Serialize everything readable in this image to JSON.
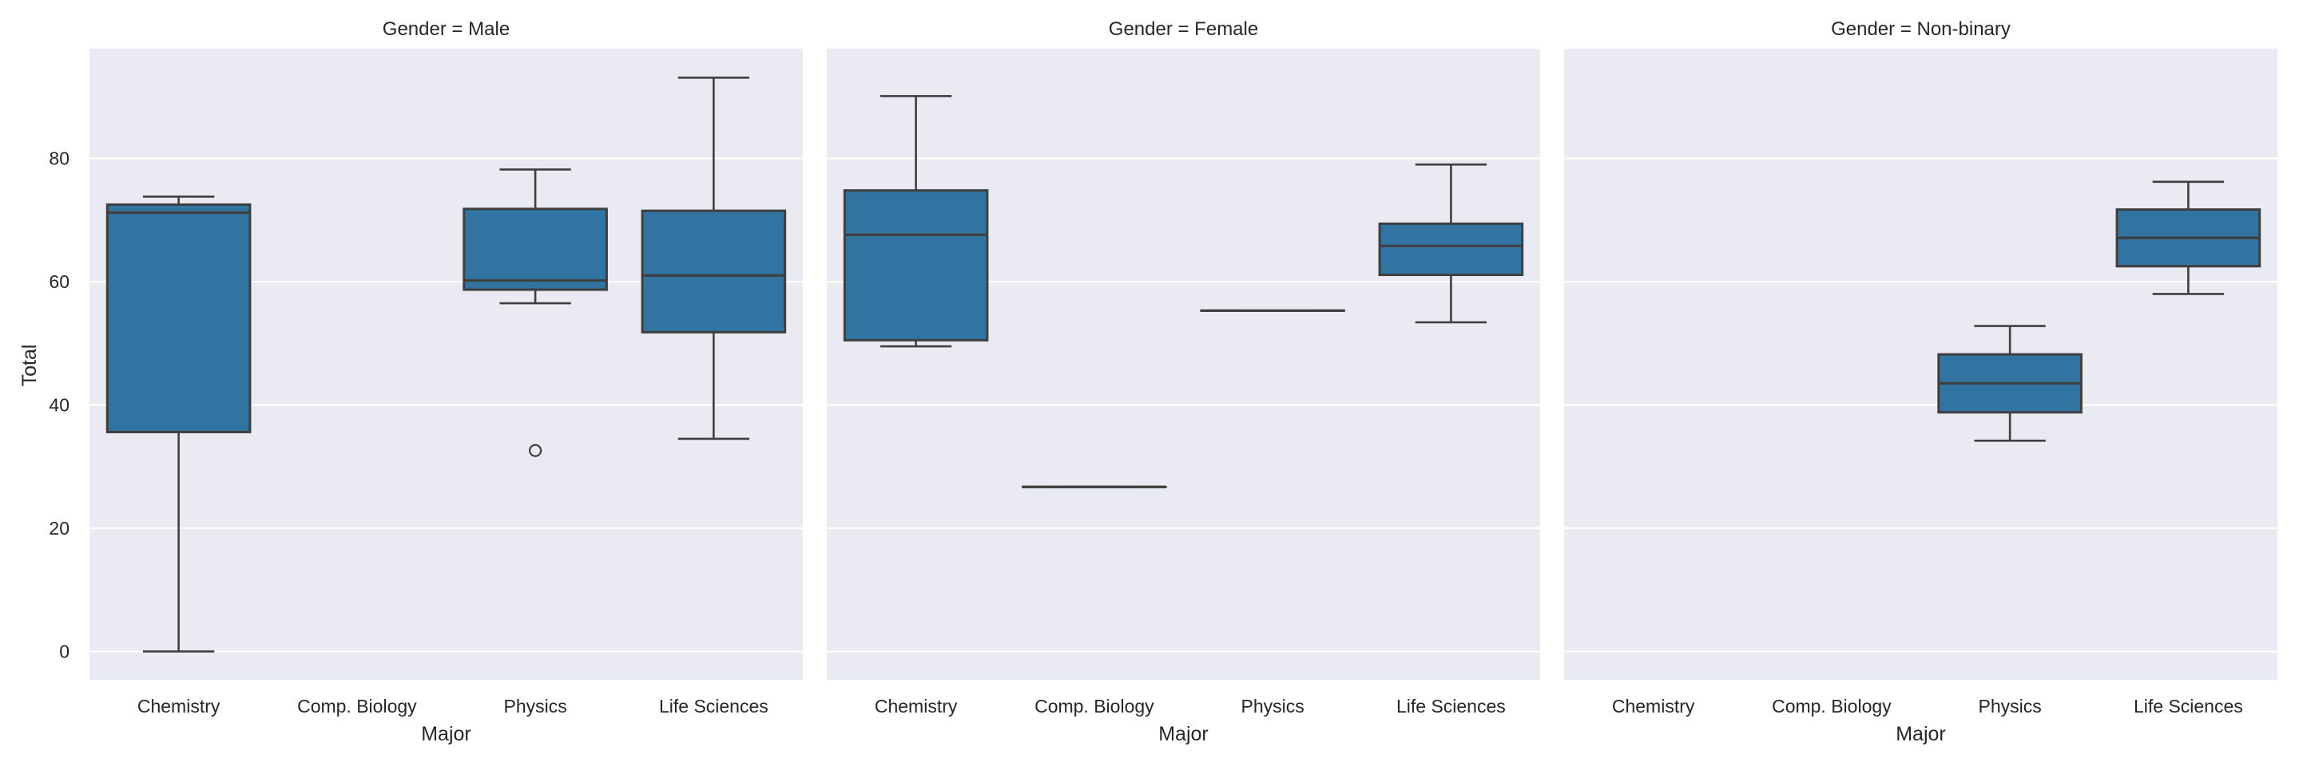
{
  "chart_data": {
    "type": "box",
    "layout": "facet-columns",
    "facet_variable": "Gender",
    "xlabel": "Major",
    "ylabel": "Total",
    "ylim": [
      -4.6,
      97.8
    ],
    "yticks": [
      0,
      20,
      40,
      60,
      80
    ],
    "ytick_labels": [
      "0",
      "20",
      "40",
      "60",
      "80"
    ],
    "grid": true,
    "categories": [
      "Chemistry",
      "Comp. Biology",
      "Physics",
      "Life Sciences"
    ],
    "colors": {
      "box_fill": "#3274a1",
      "box_edge": "#3f3f3f",
      "panel_bg": "#eaeaf2",
      "grid": "#ffffff",
      "text": "#262626"
    },
    "panels": [
      {
        "title": "Gender = Male",
        "boxes": [
          {
            "category": "Chemistry",
            "whisker_low": 0.0,
            "q1": 35.6,
            "median": 71.2,
            "q3": 72.5,
            "whisker_high": 73.8,
            "outliers": []
          },
          {
            "category": "Comp. Biology",
            "empty": true
          },
          {
            "category": "Physics",
            "whisker_low": 56.5,
            "q1": 58.7,
            "median": 60.2,
            "q3": 71.8,
            "whisker_high": 78.2,
            "outliers": [
              32.6
            ]
          },
          {
            "category": "Life Sciences",
            "whisker_low": 34.5,
            "q1": 51.8,
            "median": 61.0,
            "q3": 71.5,
            "whisker_high": 93.1,
            "outliers": []
          }
        ]
      },
      {
        "title": "Gender = Female",
        "boxes": [
          {
            "category": "Chemistry",
            "whisker_low": 49.5,
            "q1": 50.5,
            "median": 67.6,
            "q3": 74.8,
            "whisker_high": 90.1,
            "outliers": []
          },
          {
            "category": "Comp. Biology",
            "whisker_low": 26.7,
            "q1": 26.7,
            "median": 26.7,
            "q3": 26.7,
            "whisker_high": 26.7,
            "outliers": []
          },
          {
            "category": "Physics",
            "whisker_low": 55.3,
            "q1": 55.3,
            "median": 55.3,
            "q3": 55.3,
            "whisker_high": 55.3,
            "outliers": []
          },
          {
            "category": "Life Sciences",
            "whisker_low": 53.4,
            "q1": 61.1,
            "median": 65.8,
            "q3": 69.4,
            "whisker_high": 79.0,
            "outliers": []
          }
        ]
      },
      {
        "title": "Gender = Non-binary",
        "boxes": [
          {
            "category": "Chemistry",
            "empty": true
          },
          {
            "category": "Comp. Biology",
            "empty": true
          },
          {
            "category": "Physics",
            "whisker_low": 34.2,
            "q1": 38.8,
            "median": 43.5,
            "q3": 48.2,
            "whisker_high": 52.8,
            "outliers": []
          },
          {
            "category": "Life Sciences",
            "whisker_low": 58.0,
            "q1": 62.5,
            "median": 67.1,
            "q3": 71.7,
            "whisker_high": 76.2,
            "outliers": []
          }
        ]
      }
    ]
  }
}
